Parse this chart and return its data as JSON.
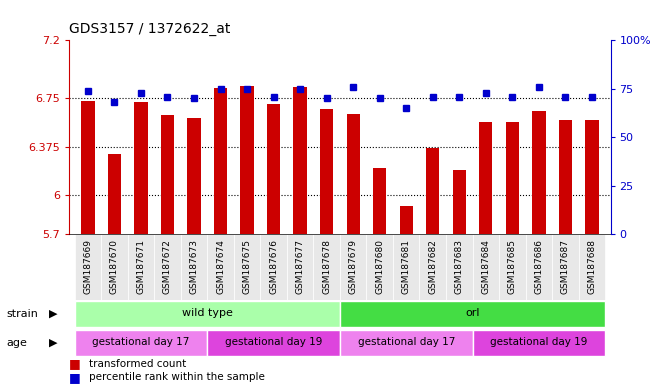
{
  "title": "GDS3157 / 1372622_at",
  "samples": [
    "GSM187669",
    "GSM187670",
    "GSM187671",
    "GSM187672",
    "GSM187673",
    "GSM187674",
    "GSM187675",
    "GSM187676",
    "GSM187677",
    "GSM187678",
    "GSM187679",
    "GSM187680",
    "GSM187681",
    "GSM187682",
    "GSM187683",
    "GSM187684",
    "GSM187685",
    "GSM187686",
    "GSM187687",
    "GSM187688"
  ],
  "red_values": [
    6.73,
    6.32,
    6.72,
    6.62,
    6.6,
    6.83,
    6.85,
    6.71,
    6.84,
    6.67,
    6.63,
    6.21,
    5.92,
    6.37,
    6.2,
    6.57,
    6.57,
    6.65,
    6.58,
    6.58
  ],
  "blue_values": [
    74,
    68,
    73,
    71,
    70,
    75,
    75,
    71,
    75,
    70,
    76,
    70,
    65,
    71,
    71,
    73,
    71,
    76,
    71,
    71
  ],
  "ymin": 5.7,
  "ymax": 7.2,
  "yticks": [
    5.7,
    6.0,
    6.375,
    6.75,
    7.2
  ],
  "ytick_labels": [
    "5.7",
    "6",
    "6.375",
    "6.75",
    "7.2"
  ],
  "y2min": 0,
  "y2max": 100,
  "y2ticks": [
    0,
    25,
    50,
    75,
    100
  ],
  "y2tick_labels": [
    "0",
    "25",
    "50",
    "75",
    "100%"
  ],
  "bar_color": "#cc0000",
  "dot_color": "#0000cc",
  "axis_color_left": "#cc0000",
  "axis_color_right": "#0000cc",
  "strain_groups": [
    {
      "label": "wild type",
      "start": 0,
      "end": 9,
      "color": "#aaffaa"
    },
    {
      "label": "orl",
      "start": 10,
      "end": 19,
      "color": "#44dd44"
    }
  ],
  "age_groups": [
    {
      "label": "gestational day 17",
      "start": 0,
      "end": 4,
      "color": "#ee82ee"
    },
    {
      "label": "gestational day 19",
      "start": 5,
      "end": 9,
      "color": "#dd44dd"
    },
    {
      "label": "gestational day 17",
      "start": 10,
      "end": 14,
      "color": "#ee82ee"
    },
    {
      "label": "gestational day 19",
      "start": 15,
      "end": 19,
      "color": "#dd44dd"
    }
  ]
}
